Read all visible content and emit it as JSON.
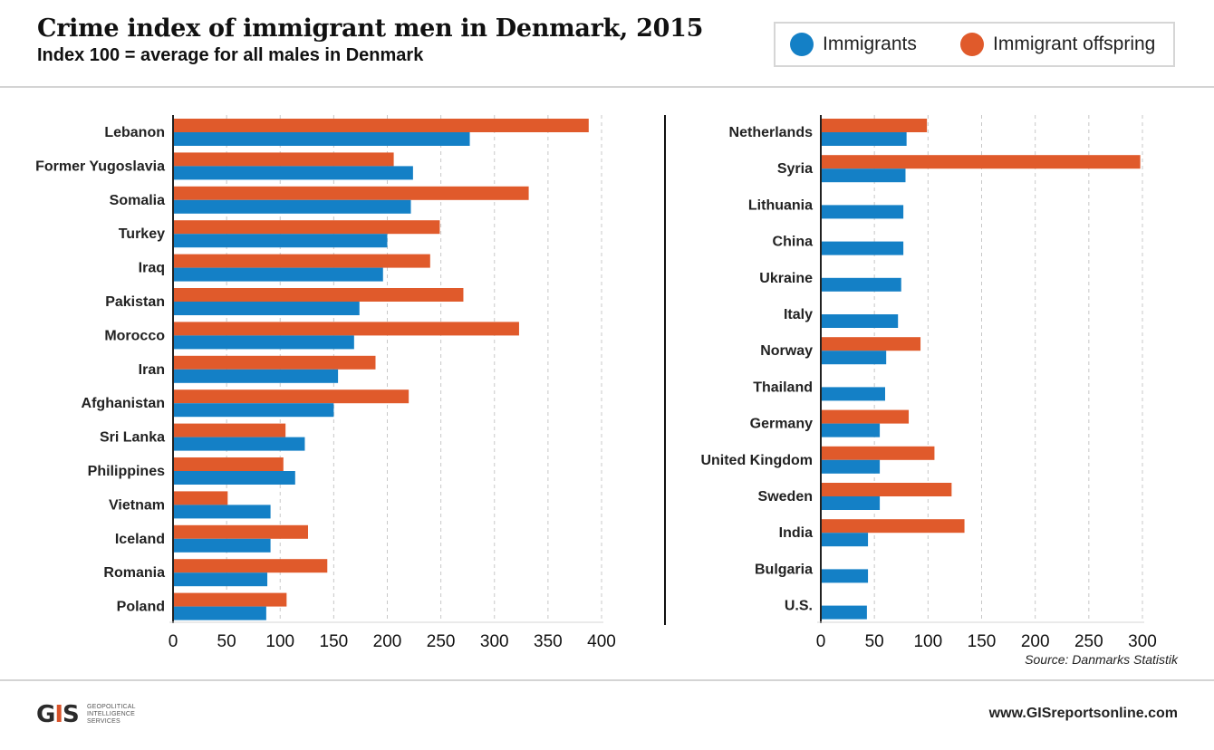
{
  "header": {
    "title": "Crime index of immigrant men in Denmark, 2015",
    "subtitle": "Index 100 = average for all males in Denmark"
  },
  "legend": {
    "items": [
      {
        "label": "Immigrants",
        "color": "#1480c6"
      },
      {
        "label": "Immigrant offspring",
        "color": "#e05a2b"
      }
    ]
  },
  "colors": {
    "immigrants": "#1480c6",
    "offspring": "#e05a2b",
    "grid": "#c8c8c8",
    "axis": "#222222"
  },
  "chart_data": [
    {
      "type": "bar",
      "orientation": "horizontal",
      "categories": [
        "Lebanon",
        "Former Yugoslavia",
        "Somalia",
        "Turkey",
        "Iraq",
        "Pakistan",
        "Morocco",
        "Iran",
        "Afghanistan",
        "Sri Lanka",
        "Philippines",
        "Vietnam",
        "Iceland",
        "Romania",
        "Poland"
      ],
      "series": [
        {
          "name": "Immigrant offspring",
          "values": [
            388,
            206,
            332,
            249,
            240,
            271,
            323,
            189,
            220,
            105,
            103,
            51,
            126,
            144,
            106
          ]
        },
        {
          "name": "Immigrants",
          "values": [
            277,
            224,
            222,
            200,
            196,
            174,
            169,
            154,
            150,
            123,
            114,
            91,
            91,
            88,
            87
          ]
        }
      ],
      "xlim": [
        0,
        400
      ],
      "xticks": [
        0,
        50,
        100,
        150,
        200,
        250,
        300,
        350,
        400
      ],
      "grid": true
    },
    {
      "type": "bar",
      "orientation": "horizontal",
      "categories": [
        "Netherlands",
        "Syria",
        "Lithuania",
        "China",
        "Ukraine",
        "Italy",
        "Norway",
        "Thailand",
        "Germany",
        "United Kingdom",
        "Sweden",
        "India",
        "Bulgaria",
        "U.S."
      ],
      "series": [
        {
          "name": "Immigrant offspring",
          "values": [
            99,
            298,
            null,
            null,
            null,
            null,
            93,
            null,
            82,
            106,
            122,
            134,
            null,
            null
          ]
        },
        {
          "name": "Immigrants",
          "values": [
            80,
            79,
            77,
            77,
            75,
            72,
            61,
            60,
            55,
            55,
            55,
            44,
            44,
            43
          ]
        }
      ],
      "xlim": [
        0,
        300
      ],
      "xticks": [
        0,
        50,
        100,
        150,
        200,
        250,
        300
      ],
      "grid": true
    }
  ],
  "source": "Source: Danmarks Statistik",
  "footer": {
    "logo_text": "GEOPOLITICAL\nINTELLIGENCE\nSERVICES",
    "logo_mark": "GIS",
    "website": "www.GISreportsonline.com"
  }
}
